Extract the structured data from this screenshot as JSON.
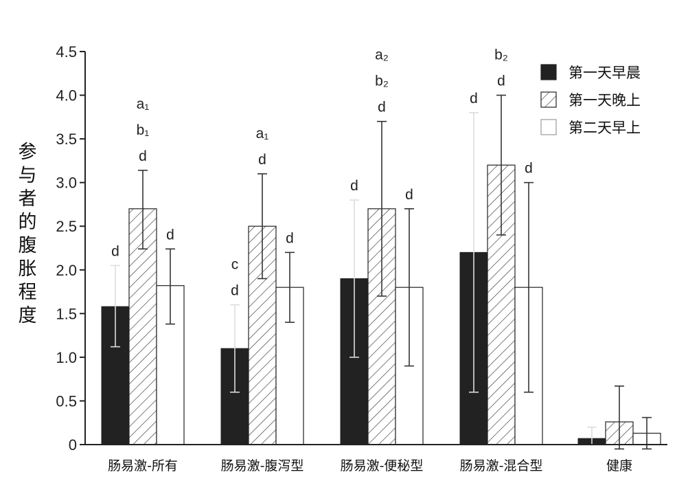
{
  "chart_data": {
    "type": "bar",
    "ylabel": "参与者的腹胀程度",
    "ylim": [
      0,
      4.5
    ],
    "yticks": [
      "0",
      "0.5",
      "1.0",
      "1.5",
      "2.0",
      "2.5",
      "3.0",
      "3.5",
      "4.0",
      "4.5"
    ],
    "categories": [
      "肠易激-所有",
      "肠易激-腹泻型",
      "肠易激-便秘型",
      "肠易激-混合型",
      "健康"
    ],
    "legend_position": "top-right",
    "series": [
      {
        "name": "第一天早晨",
        "style": "solid",
        "color": "#222222",
        "values": [
          1.58,
          1.1,
          1.9,
          2.2,
          0.07
        ],
        "err_low": [
          1.12,
          0.6,
          1.0,
          0.6,
          0.0
        ],
        "err_high": [
          2.05,
          1.6,
          2.8,
          3.8,
          0.2
        ]
      },
      {
        "name": "第一天晚上",
        "style": "hatched",
        "color": "#ffffff",
        "values": [
          2.7,
          2.5,
          2.7,
          3.2,
          0.26
        ],
        "err_low": [
          2.24,
          1.9,
          1.7,
          2.4,
          -0.05
        ],
        "err_high": [
          3.14,
          3.1,
          3.7,
          4.0,
          0.67
        ]
      },
      {
        "name": "第二天早上",
        "style": "open",
        "color": "#ffffff",
        "values": [
          1.82,
          1.8,
          1.8,
          1.8,
          0.13
        ],
        "err_low": [
          1.38,
          1.4,
          0.9,
          0.6,
          -0.05
        ],
        "err_high": [
          2.24,
          2.2,
          2.7,
          3.0,
          0.31
        ]
      }
    ],
    "annotations": [
      [
        [
          "d"
        ],
        [
          "a₁",
          "b₁",
          "d"
        ],
        [
          "d"
        ]
      ],
      [
        [
          "c",
          "d"
        ],
        [
          "a₁",
          "d"
        ],
        [
          "d"
        ]
      ],
      [
        [
          "d"
        ],
        [
          "a₂",
          "b₂",
          "d"
        ],
        [
          "d"
        ]
      ],
      [
        [
          "d"
        ],
        [
          "b₂",
          "d"
        ],
        [
          "d"
        ]
      ],
      [
        [],
        [],
        []
      ]
    ]
  }
}
